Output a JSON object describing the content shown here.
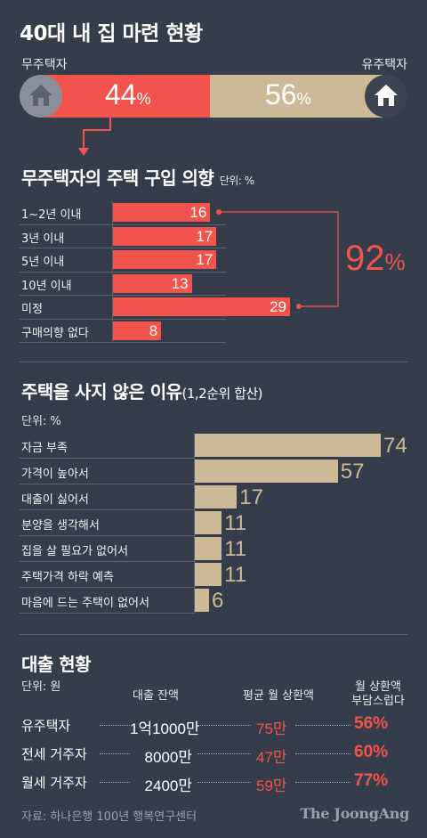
{
  "title": "40대 내 집 마련 현황",
  "ownership": {
    "left_label": "무주택자",
    "right_label": "유주택자",
    "left_value": "44",
    "right_value": "56",
    "pct_unit": "%",
    "colors": {
      "red": "#f2544d",
      "tan": "#cdb997"
    }
  },
  "chart_data": [
    {
      "type": "bar",
      "title": "무주택자의 주택 구입 의향",
      "unit": "단위: %",
      "categories": [
        "1~2년 이내",
        "3년 이내",
        "5년 이내",
        "10년 이내",
        "미정",
        "구매의향 없다"
      ],
      "values": [
        16,
        17,
        17,
        13,
        29,
        8
      ],
      "bracket_value": "92",
      "bracket_unit": "%",
      "color": "#f2544d"
    },
    {
      "type": "bar",
      "title": "주택을 사지 않은 이유",
      "subtitle": "(1,2순위 합산)",
      "unit": "단위: %",
      "categories": [
        "자금 부족",
        "가격이 높아서",
        "대출이 싫어서",
        "분양을 생각해서",
        "집을 살 필요가 없어서",
        "주택가격 하락 예측",
        "마음에 드는 주택이 없어서"
      ],
      "values": [
        74,
        57,
        17,
        11,
        11,
        11,
        6
      ],
      "color": "#cdb997"
    },
    {
      "type": "table",
      "title": "대출 현황",
      "unit": "단위: 원",
      "columns": [
        "대출 잔액",
        "평균 월 상환액",
        "월 상환액\n부담스럽다"
      ],
      "rows": [
        {
          "label": "유주택자",
          "balance": "1억1000만",
          "monthly": "75만",
          "burden": "56%"
        },
        {
          "label": "전세 거주자",
          "balance": "8000만",
          "monthly": "47만",
          "burden": "60%"
        },
        {
          "label": "월세 거주자",
          "balance": "2400만",
          "monthly": "59만",
          "burden": "77%"
        }
      ]
    }
  ],
  "footer": {
    "source": "자료: 하나은행 100년 행복연구센터",
    "brand": "The JoongAng"
  }
}
